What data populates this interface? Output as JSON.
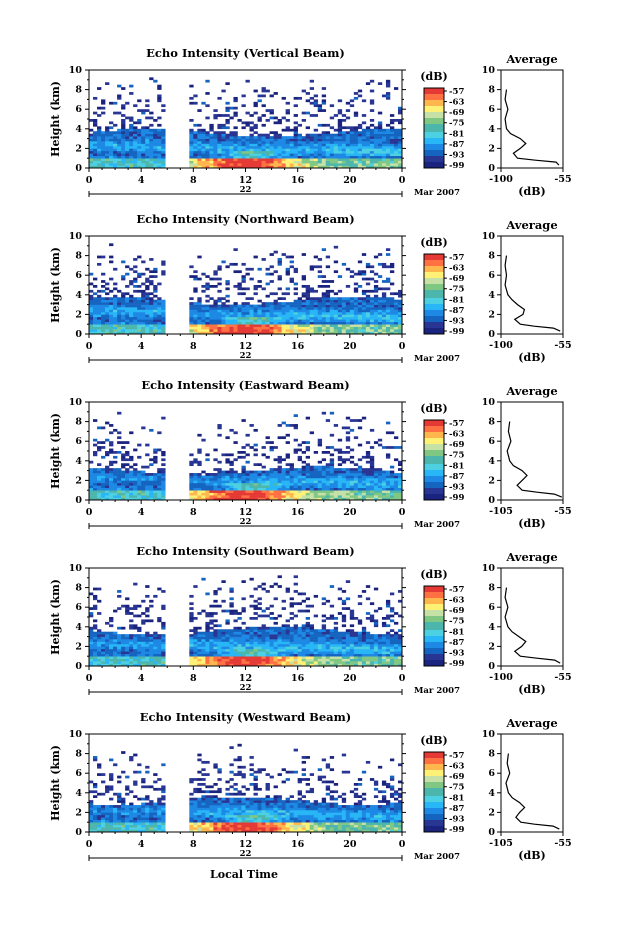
{
  "figure": {
    "x_label": "Local Time",
    "date_label": "Mar 2007",
    "day_label": "22",
    "avg_title": "Average",
    "avg_xlabel": "(dB)",
    "cb_unit": "(dB)",
    "colormap": [
      "#1a237e",
      "#283593",
      "#1565c0",
      "#1e88e5",
      "#29b6f6",
      "#4dd0e1",
      "#4db6ac",
      "#81c784",
      "#c5e1a5",
      "#fff176",
      "#ffb74d",
      "#ff7043",
      "#e53935"
    ],
    "colorbar_ticks": [
      "-57",
      "-63",
      "-69",
      "-75",
      "-81",
      "-87",
      "-93",
      "-99"
    ]
  },
  "chart_data": [
    {
      "type": "heatmap",
      "title": "Echo Intensity (Vertical Beam)",
      "ylabel": "Height (km)",
      "xlim": [
        0,
        24
      ],
      "ylim": [
        0,
        10
      ],
      "xticks": [
        "0",
        "4",
        "8",
        "12",
        "16",
        "20",
        "0"
      ],
      "yticks": [
        "0",
        "2",
        "4",
        "6",
        "8",
        "10"
      ],
      "clim": [
        -99,
        -57
      ],
      "data_gap_hours": [
        5.8,
        7.8
      ],
      "cloud_top_km": 3.6,
      "average_profile": {
        "xlim": [
          -100,
          -55
        ],
        "xticks": [
          "-100",
          "-55"
        ],
        "height_km": [
          0.3,
          0.6,
          0.8,
          1.0,
          1.5,
          2.0,
          2.5,
          3.0,
          3.5,
          4.0,
          5.0,
          6.0,
          7.0,
          8.0
        ],
        "value_db": [
          -58,
          -60,
          -75,
          -88,
          -91,
          -86,
          -82,
          -86,
          -93,
          -96,
          -97,
          -95,
          -97,
          -96
        ]
      }
    },
    {
      "type": "heatmap",
      "title": "Echo Intensity (Northward Beam)",
      "ylabel": "Height (km)",
      "xlim": [
        0,
        24
      ],
      "ylim": [
        0,
        10
      ],
      "xticks": [
        "0",
        "4",
        "8",
        "12",
        "16",
        "20",
        "0"
      ],
      "yticks": [
        "0",
        "2",
        "4",
        "6",
        "8",
        "10"
      ],
      "clim": [
        -99,
        -57
      ],
      "data_gap_hours": [
        5.8,
        7.8
      ],
      "cloud_top_km": 3.4,
      "average_profile": {
        "xlim": [
          -100,
          -55
        ],
        "xticks": [
          "-100",
          "-55"
        ],
        "height_km": [
          0.3,
          0.6,
          0.8,
          1.0,
          1.5,
          2.0,
          2.5,
          3.0,
          3.5,
          4.0,
          5.0,
          6.0,
          7.0,
          8.0
        ],
        "value_db": [
          -57,
          -62,
          -76,
          -86,
          -90,
          -84,
          -83,
          -88,
          -92,
          -95,
          -97,
          -96,
          -97,
          -96
        ]
      }
    },
    {
      "type": "heatmap",
      "title": "Echo Intensity (Eastward Beam)",
      "ylabel": "Height (km)",
      "xlim": [
        0,
        24
      ],
      "ylim": [
        0,
        10
      ],
      "xticks": [
        "0",
        "4",
        "8",
        "12",
        "16",
        "20",
        "0"
      ],
      "yticks": [
        "0",
        "2",
        "4",
        "6",
        "8",
        "10"
      ],
      "clim": [
        -99,
        -57
      ],
      "data_gap_hours": [
        5.8,
        7.8
      ],
      "cloud_top_km": 3.0,
      "average_profile": {
        "xlim": [
          -105,
          -55
        ],
        "xticks": [
          "-105",
          "-55"
        ],
        "height_km": [
          0.3,
          0.6,
          0.8,
          1.0,
          1.5,
          2.0,
          2.5,
          3.0,
          3.5,
          4.0,
          5.0,
          6.0,
          7.0,
          8.0
        ],
        "value_db": [
          -56,
          -62,
          -76,
          -88,
          -92,
          -88,
          -84,
          -88,
          -95,
          -98,
          -100,
          -97,
          -99,
          -98
        ]
      }
    },
    {
      "type": "heatmap",
      "title": "Echo Intensity (Southward Beam)",
      "ylabel": "Height (km)",
      "xlim": [
        0,
        24
      ],
      "ylim": [
        0,
        10
      ],
      "xticks": [
        "0",
        "4",
        "8",
        "12",
        "16",
        "20",
        "0"
      ],
      "yticks": [
        "0",
        "2",
        "4",
        "6",
        "8",
        "10"
      ],
      "clim": [
        -99,
        -57
      ],
      "data_gap_hours": [
        5.8,
        7.8
      ],
      "cloud_top_km": 3.6,
      "average_profile": {
        "xlim": [
          -100,
          -55
        ],
        "xticks": [
          "-100",
          "-55"
        ],
        "height_km": [
          0.3,
          0.6,
          0.8,
          1.0,
          1.5,
          2.0,
          2.5,
          3.0,
          3.5,
          4.0,
          5.0,
          6.0,
          7.0,
          8.0
        ],
        "value_db": [
          -57,
          -61,
          -74,
          -86,
          -90,
          -85,
          -82,
          -87,
          -92,
          -95,
          -97,
          -95,
          -97,
          -96
        ]
      }
    },
    {
      "type": "heatmap",
      "title": "Echo Intensity (Westward Beam)",
      "ylabel": "Height (km)",
      "xlim": [
        0,
        24
      ],
      "ylim": [
        0,
        10
      ],
      "xticks": [
        "0",
        "4",
        "8",
        "12",
        "16",
        "20",
        "0"
      ],
      "yticks": [
        "0",
        "2",
        "4",
        "6",
        "8",
        "10"
      ],
      "clim": [
        -99,
        -57
      ],
      "data_gap_hours": [
        5.8,
        7.8
      ],
      "cloud_top_km": 3.2,
      "average_profile": {
        "xlim": [
          -105,
          -55
        ],
        "xticks": [
          "-105",
          "-55"
        ],
        "height_km": [
          0.3,
          0.6,
          0.8,
          1.0,
          1.5,
          2.0,
          2.5,
          3.0,
          3.5,
          4.0,
          5.0,
          6.0,
          7.0,
          8.0
        ],
        "value_db": [
          -58,
          -63,
          -78,
          -89,
          -93,
          -90,
          -86,
          -90,
          -96,
          -99,
          -101,
          -98,
          -100,
          -99
        ]
      }
    }
  ]
}
